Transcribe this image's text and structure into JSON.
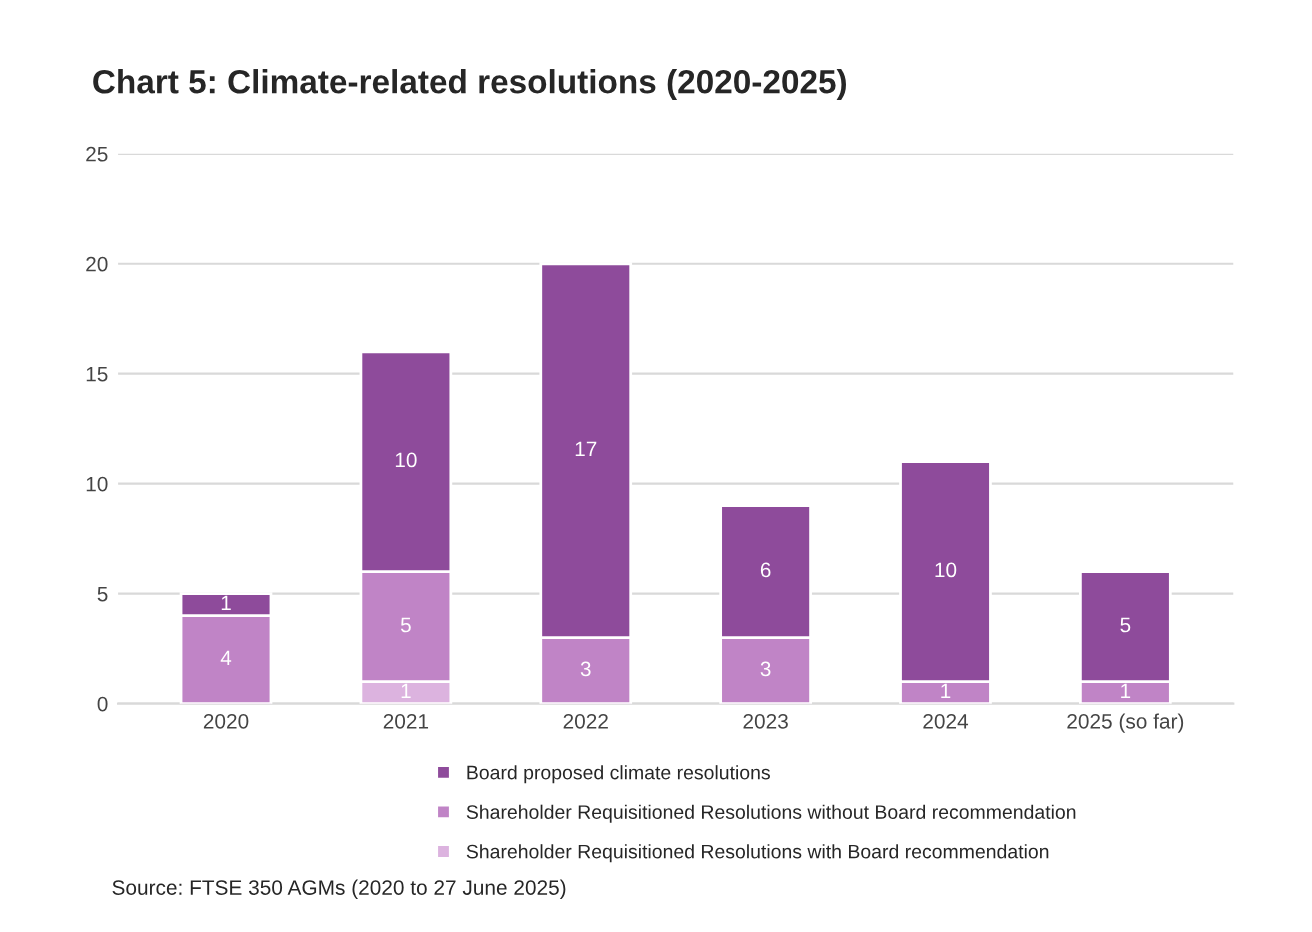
{
  "chart_data": {
    "type": "bar",
    "title": "Chart 5: Climate-related resolutions (2020-2025)",
    "categories": [
      "2020",
      "2021",
      "2022",
      "2023",
      "2024",
      "2025 (so far)"
    ],
    "stacked": true,
    "series": [
      {
        "name": "Shareholder Requisitioned Resolutions with Board recommendation",
        "color": "#dcb3df",
        "values": [
          0,
          1,
          0,
          0,
          0,
          0
        ],
        "value_labels": [
          null,
          "1",
          null,
          null,
          null,
          null
        ]
      },
      {
        "name": "Shareholder Requisitioned Resolutions without Board recommendation",
        "color": "#c084c6",
        "values": [
          4,
          5,
          3,
          3,
          1,
          1
        ],
        "value_labels": [
          "4",
          "5",
          "3",
          "3",
          "1",
          "1"
        ]
      },
      {
        "name": "Board proposed climate resolutions",
        "color": "#8e4b9b",
        "values": [
          1,
          10,
          17,
          6,
          10,
          5
        ],
        "value_labels": [
          "1",
          "10",
          "17",
          "6",
          "10",
          "5"
        ]
      }
    ],
    "ylim": [
      0,
      25
    ],
    "yticks": [
      0,
      5,
      10,
      15,
      20,
      25
    ],
    "grid": "y",
    "legend": "bottom",
    "annotations": [
      "Source: FTSE 350 AGMs (2020 to 27 June 2025)"
    ]
  }
}
